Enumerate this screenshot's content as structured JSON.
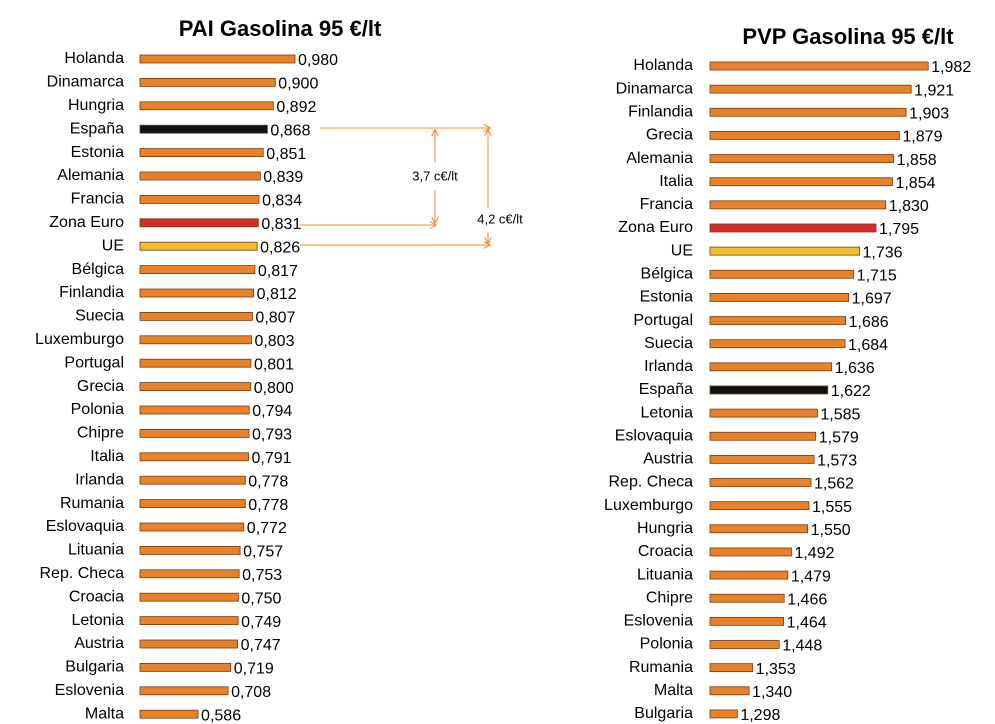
{
  "chart_data": [
    {
      "type": "bar",
      "orientation": "horizontal",
      "title": "PAI Gasolina 95 €/lt",
      "categories": [
        "Holanda",
        "Dinamarca",
        "Hungria",
        "España",
        "Estonia",
        "Alemania",
        "Francia",
        "Zona Euro",
        "UE",
        "Bélgica",
        "Finlandia",
        "Suecia",
        "Luxemburgo",
        "Portugal",
        "Grecia",
        "Polonia",
        "Chipre",
        "Italia",
        "Irlanda",
        "Rumania",
        "Eslovaquia",
        "Lituania",
        "Rep. Checa",
        "Croacia",
        "Letonia",
        "Austria",
        "Bulgaria",
        "Eslovenia",
        "Malta"
      ],
      "values": [
        0.98,
        0.9,
        0.892,
        0.868,
        0.851,
        0.839,
        0.834,
        0.831,
        0.826,
        0.817,
        0.812,
        0.807,
        0.803,
        0.801,
        0.8,
        0.794,
        0.793,
        0.791,
        0.778,
        0.778,
        0.772,
        0.757,
        0.753,
        0.75,
        0.749,
        0.747,
        0.719,
        0.708,
        0.586
      ],
      "value_labels": [
        "0,980",
        "0,900",
        "0,892",
        "0,868",
        "0,851",
        "0,839",
        "0,834",
        "0,831",
        "0,826",
        "0,817",
        "0,812",
        "0,807",
        "0,803",
        "0,801",
        "0,800",
        "0,794",
        "0,793",
        "0,791",
        "0,778",
        "0,778",
        "0,772",
        "0,757",
        "0,753",
        "0,750",
        "0,749",
        "0,747",
        "0,719",
        "0,708",
        "0,586"
      ],
      "colors": [
        "#e8822a",
        "#e8822a",
        "#e8822a",
        "#111111",
        "#e8822a",
        "#e8822a",
        "#e8822a",
        "#d62b2b",
        "#f0c030",
        "#e8822a",
        "#e8822a",
        "#e8822a",
        "#e8822a",
        "#e8822a",
        "#e8822a",
        "#e8822a",
        "#e8822a",
        "#e8822a",
        "#e8822a",
        "#e8822a",
        "#e8822a",
        "#e8822a",
        "#e8822a",
        "#e8822a",
        "#e8822a",
        "#e8822a",
        "#e8822a",
        "#e8822a",
        "#e8822a"
      ],
      "xlim": [
        0.35,
        1.0
      ],
      "annotations": [
        "3,7 c€/lt",
        "4,2 c€/lt"
      ]
    },
    {
      "type": "bar",
      "orientation": "horizontal",
      "title": "PVP Gasolina 95 €/lt",
      "categories": [
        "Holanda",
        "Dinamarca",
        "Finlandia",
        "Grecia",
        "Alemania",
        "Italia",
        "Francia",
        "Zona Euro",
        "UE",
        "Bélgica",
        "Estonia",
        "Portugal",
        "Suecia",
        "Irlanda",
        "España",
        "Letonia",
        "Eslovaquia",
        "Austria",
        "Rep. Checa",
        "Luxemburgo",
        "Hungria",
        "Croacia",
        "Lituania",
        "Chipre",
        "Eslovenia",
        "Polonia",
        "Rumania",
        "Malta",
        "Bulgaria"
      ],
      "values": [
        1.982,
        1.921,
        1.903,
        1.879,
        1.858,
        1.854,
        1.83,
        1.795,
        1.736,
        1.715,
        1.697,
        1.686,
        1.684,
        1.636,
        1.622,
        1.585,
        1.579,
        1.573,
        1.562,
        1.555,
        1.55,
        1.492,
        1.479,
        1.466,
        1.464,
        1.448,
        1.353,
        1.34,
        1.298
      ],
      "value_labels": [
        "1,982",
        "1,921",
        "1,903",
        "1,879",
        "1,858",
        "1,854",
        "1,830",
        "1,795",
        "1,736",
        "1,715",
        "1,697",
        "1,686",
        "1,684",
        "1,636",
        "1,622",
        "1,585",
        "1,579",
        "1,573",
        "1,562",
        "1,555",
        "1,550",
        "1,492",
        "1,479",
        "1,466",
        "1,464",
        "1,448",
        "1,353",
        "1,340",
        "1,298"
      ],
      "colors": [
        "#e8822a",
        "#e8822a",
        "#e8822a",
        "#e8822a",
        "#e8822a",
        "#e8822a",
        "#e8822a",
        "#d62b2b",
        "#f0c030",
        "#e8822a",
        "#e8822a",
        "#e8822a",
        "#e8822a",
        "#e8822a",
        "#111111",
        "#e8822a",
        "#e8822a",
        "#e8822a",
        "#e8822a",
        "#e8822a",
        "#e8822a",
        "#e8822a",
        "#e8822a",
        "#e8822a",
        "#e8822a",
        "#e8822a",
        "#e8822a",
        "#e8822a",
        "#e8822a"
      ],
      "xlim": [
        1.2,
        2.0
      ]
    }
  ]
}
